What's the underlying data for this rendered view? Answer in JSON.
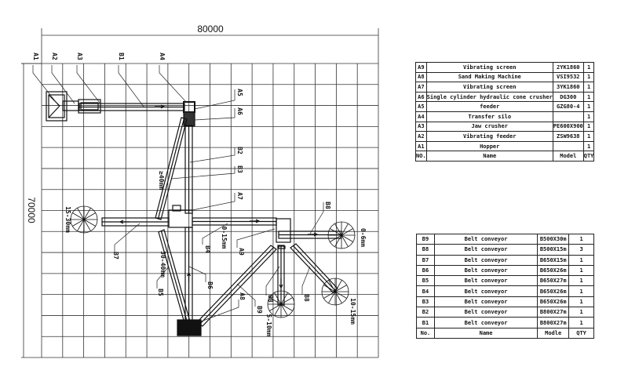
{
  "dimensions": {
    "width_label": "80000",
    "height_label": "70000"
  },
  "labels": {
    "a1": "A1",
    "a2": "A2",
    "a3": "A3",
    "b1": "B1",
    "a4": "A4",
    "a5": "A5",
    "a6": "A6",
    "b2": "B2",
    "b3": "B3",
    "a7": "A7",
    "b7": "B7",
    "b4": "B4",
    "a9": "A9",
    "b5": "B5",
    "b6": "B6",
    "b9": "B9",
    "a8": "A8",
    "b8_right": "B8",
    "b8_down": "B8",
    "b8_diag": "B8",
    "size_ge40": "≥40mm",
    "size_15_30": "15-30mm",
    "size_0_15": "0-15mm",
    "size_30_40": "30-40mm",
    "size_0_6": "0-6mm",
    "size_5_10": "5-10mm",
    "size_10_15": "10-15mm"
  },
  "equipment_table": {
    "header": {
      "no": "NO.",
      "name": "Name",
      "model": "Model",
      "qty": "QTY"
    },
    "rows": [
      {
        "no": "A9",
        "name": "Vibrating screen",
        "model": "2YK1860",
        "qty": "1"
      },
      {
        "no": "A8",
        "name": "Sand Making Machine",
        "model": "VSI9532",
        "qty": "1"
      },
      {
        "no": "A7",
        "name": "Vibrating  screen",
        "model": "3YK1860",
        "qty": "1"
      },
      {
        "no": "A6",
        "name": "Single cylinder hydraulic cone crusher",
        "model": "DG300",
        "qty": "1"
      },
      {
        "no": "A5",
        "name": "feeder",
        "model": "GZG80-4",
        "qty": "1"
      },
      {
        "no": "A4",
        "name": "Transfer silo",
        "model": "",
        "qty": "1"
      },
      {
        "no": "A3",
        "name": "Jaw crusher",
        "model": "PE600X900",
        "qty": "1"
      },
      {
        "no": "A2",
        "name": "Vibrating feeder",
        "model": "ZSW9638",
        "qty": "1"
      },
      {
        "no": "A1",
        "name": "Hopper",
        "model": "",
        "qty": "1"
      }
    ]
  },
  "conveyor_table": {
    "header": {
      "no": "No.",
      "name": "Name",
      "model": "Modle",
      "qty": "QTY"
    },
    "rows": [
      {
        "no": "B9",
        "name": "Belt conveyor",
        "model": "B500X30m",
        "qty": "1"
      },
      {
        "no": "B8",
        "name": "Belt conveyor",
        "model": "B500X15m",
        "qty": "3"
      },
      {
        "no": "B7",
        "name": "Belt conveyor",
        "model": "B650X15m",
        "qty": "1"
      },
      {
        "no": "B6",
        "name": "Belt conveyor",
        "model": "B650X26m",
        "qty": "1"
      },
      {
        "no": "B5",
        "name": "Belt conveyor",
        "model": "B650X27m",
        "qty": "1"
      },
      {
        "no": "B4",
        "name": "Belt conveyor",
        "model": "B650X26m",
        "qty": "1"
      },
      {
        "no": "B3",
        "name": "Belt conveyor",
        "model": "B650X26m",
        "qty": "1"
      },
      {
        "no": "B2",
        "name": "Belt conveyor",
        "model": "B800X27m",
        "qty": "1"
      },
      {
        "no": "B1",
        "name": "Belt conveyor",
        "model": "B800X27m",
        "qty": "1"
      }
    ]
  }
}
